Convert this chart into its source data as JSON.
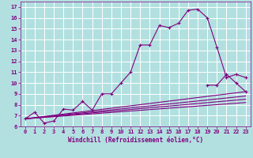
{
  "xlabel": "Windchill (Refroidissement éolien,°C)",
  "background_color": "#b2e0e0",
  "grid_color": "#ffffff",
  "line_color": "#800080",
  "xlim": [
    -0.5,
    23.5
  ],
  "ylim": [
    6,
    17.5
  ],
  "xticks": [
    0,
    1,
    2,
    3,
    4,
    5,
    6,
    7,
    8,
    9,
    10,
    11,
    12,
    13,
    14,
    15,
    16,
    17,
    18,
    19,
    20,
    21,
    22,
    23
  ],
  "yticks": [
    6,
    7,
    8,
    9,
    10,
    11,
    12,
    13,
    14,
    15,
    16,
    17
  ],
  "series_main": {
    "x": [
      0,
      1,
      2,
      3,
      4,
      5,
      6,
      7,
      8,
      9,
      10,
      11,
      12,
      13,
      14,
      15,
      16,
      17,
      18,
      19,
      20,
      21,
      22,
      23
    ],
    "y": [
      6.7,
      7.3,
      6.3,
      6.5,
      7.6,
      7.5,
      8.3,
      7.5,
      9.0,
      9.0,
      10.0,
      11.0,
      13.5,
      13.5,
      15.3,
      15.1,
      15.5,
      16.7,
      16.8,
      16.0,
      13.3,
      10.5,
      10.8,
      10.5
    ]
  },
  "series_lines": [
    {
      "x": [
        0,
        23
      ],
      "y": [
        6.7,
        9.2
      ]
    },
    {
      "x": [
        0,
        23
      ],
      "y": [
        6.7,
        8.8
      ]
    },
    {
      "x": [
        0,
        23
      ],
      "y": [
        6.7,
        8.5
      ]
    },
    {
      "x": [
        0,
        23
      ],
      "y": [
        6.7,
        8.2
      ]
    }
  ],
  "series_end": {
    "x": [
      19,
      20,
      21,
      22,
      23
    ],
    "y": [
      9.8,
      9.8,
      10.8,
      10.0,
      9.2
    ]
  }
}
